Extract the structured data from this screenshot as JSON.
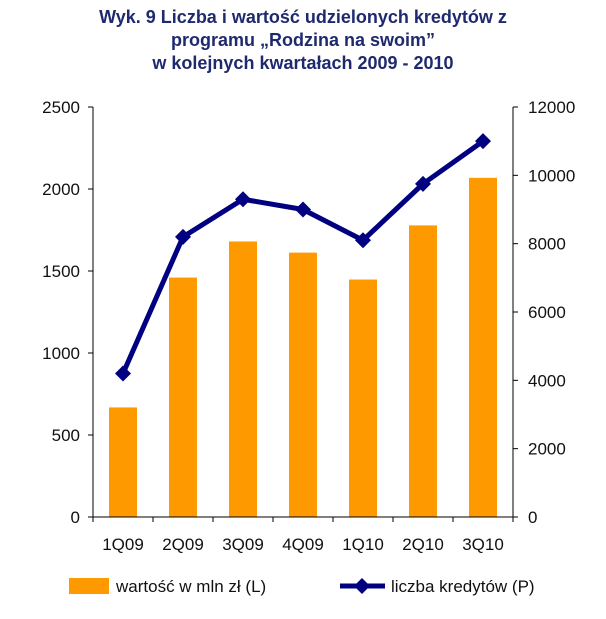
{
  "title_lines": [
    "Wyk. 9  Liczba i wartość udzielonych kredytów z",
    "programu „Rodzina na swoim”",
    "w kolejnych kwartałach 2009 - 2010"
  ],
  "colors": {
    "bar": "#ff9900",
    "line": "#000080",
    "title": "#1f2a6e"
  },
  "chart_data": {
    "type": "bar+line",
    "title": "Wyk. 9  Liczba i wartość udzielonych kredytów z programu „Rodzina na swoim” w kolejnych kwartałach 2009 - 2010",
    "categories": [
      "1Q09",
      "2Q09",
      "3Q09",
      "4Q09",
      "1Q10",
      "2Q10",
      "3Q10"
    ],
    "series": [
      {
        "name": "wartość w mln zł (L)",
        "type": "bar",
        "axis": "left",
        "values": [
          668,
          1460,
          1680,
          1612,
          1448,
          1778,
          2068
        ]
      },
      {
        "name": "liczba kredytów (P)",
        "type": "line",
        "axis": "right",
        "marker": "diamond",
        "values": [
          4200,
          8200,
          9300,
          9000,
          8100,
          9750,
          11000
        ]
      }
    ],
    "y_left": {
      "min": 0,
      "max": 2500,
      "ticks": [
        "0",
        "500",
        "1000",
        "1500",
        "2000",
        "2500"
      ]
    },
    "y_right": {
      "min": 0,
      "max": 12000,
      "ticks": [
        "0",
        "2000",
        "4000",
        "6000",
        "8000",
        "10000",
        "12000"
      ]
    },
    "grid": false,
    "legend_position": "bottom"
  }
}
